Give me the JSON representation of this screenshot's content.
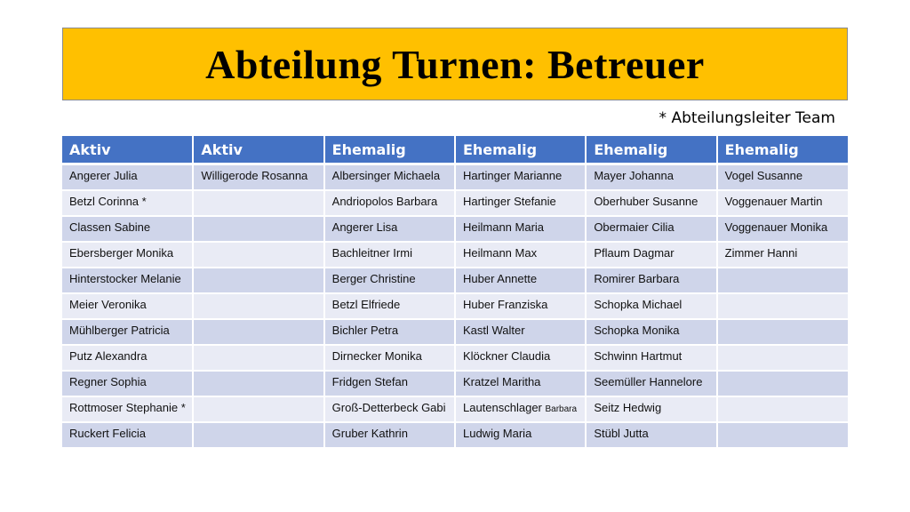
{
  "title": "Abteilung Turnen: Betreuer",
  "note": "* Abteilungsleiter Team",
  "colors": {
    "title_bg": "#FFC000",
    "header_bg": "#4472C4",
    "row_odd": "#CFD5EA",
    "row_even": "#E9EBF5"
  },
  "table": {
    "headers": [
      "Aktiv",
      "Aktiv",
      "Ehemalig",
      "Ehemalig",
      "Ehemalig",
      "Ehemalig"
    ],
    "rows": [
      [
        "Angerer Julia",
        "Willigerode Rosanna",
        "Albersinger Michaela",
        "Hartinger Marianne",
        "Mayer Johanna",
        "Vogel Susanne"
      ],
      [
        "Betzl Corinna *",
        "",
        "Andriopolos Barbara",
        "Hartinger Stefanie",
        "Oberhuber Susanne",
        "Voggenauer Martin"
      ],
      [
        "Classen Sabine",
        "",
        "Angerer Lisa",
        "Heilmann Maria",
        "Obermaier Cilia",
        "Voggenauer Monika"
      ],
      [
        "Ebersberger Monika",
        "",
        "Bachleitner Irmi",
        "Heilmann Max",
        "Pflaum Dagmar",
        "Zimmer Hanni"
      ],
      [
        "Hinterstocker Melanie",
        "",
        "Berger Christine",
        "Huber Annette",
        "Romirer Barbara",
        ""
      ],
      [
        "Meier Veronika",
        "",
        "Betzl Elfriede",
        "Huber Franziska",
        "Schopka Michael",
        ""
      ],
      [
        "Mühlberger Patricia",
        "",
        "Bichler Petra",
        "Kastl Walter",
        "Schopka Monika",
        ""
      ],
      [
        "Putz Alexandra",
        "",
        "Dirnecker Monika",
        "Klöckner Claudia",
        "Schwinn Hartmut",
        ""
      ],
      [
        "Regner Sophia",
        "",
        "Fridgen Stefan",
        "Kratzel Maritha",
        "Seemüller Hannelore",
        ""
      ],
      [
        "Rottmoser Stephanie *",
        "",
        "Groß-Detterbeck Gabi",
        "Lautenschlager Barbara",
        "Seitz Hedwig",
        ""
      ],
      [
        "Ruckert Felicia",
        "",
        "Gruber Kathrin",
        "Ludwig Maria",
        "Stübl Jutta",
        ""
      ]
    ]
  }
}
